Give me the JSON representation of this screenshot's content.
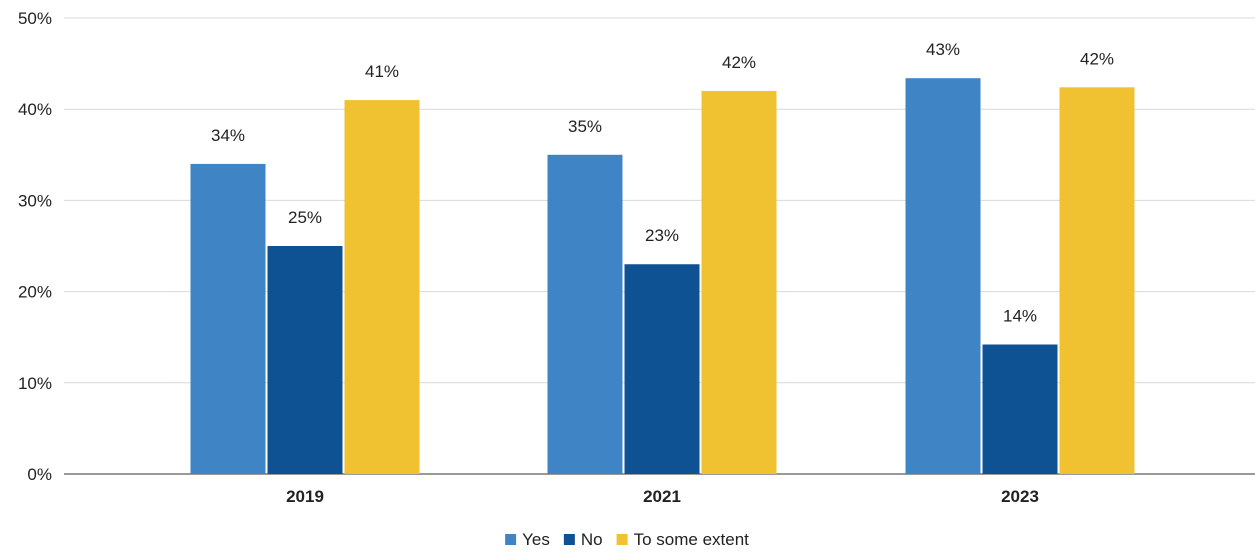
{
  "chart_data": {
    "type": "bar",
    "categories": [
      "2019",
      "2021",
      "2023"
    ],
    "series": [
      {
        "name": "Yes",
        "values": [
          34,
          35,
          43.4
        ],
        "labels": [
          "34%",
          "35%",
          "43%"
        ],
        "color": "#3f85c6"
      },
      {
        "name": "No",
        "values": [
          25,
          23,
          14.2
        ],
        "labels": [
          "25%",
          "23%",
          "14%"
        ],
        "color": "#0f5294"
      },
      {
        "name": "To some extent",
        "values": [
          41,
          42,
          42.4
        ],
        "labels": [
          "41%",
          "42%",
          "42%"
        ],
        "color": "#f0c232"
      }
    ],
    "ylim": [
      0,
      50
    ],
    "yticks": [
      0,
      10,
      20,
      30,
      40,
      50
    ],
    "ytick_labels": [
      "0%",
      "10%",
      "20%",
      "30%",
      "40%",
      "50%"
    ],
    "grid": true,
    "legend_position": "bottom-center"
  }
}
